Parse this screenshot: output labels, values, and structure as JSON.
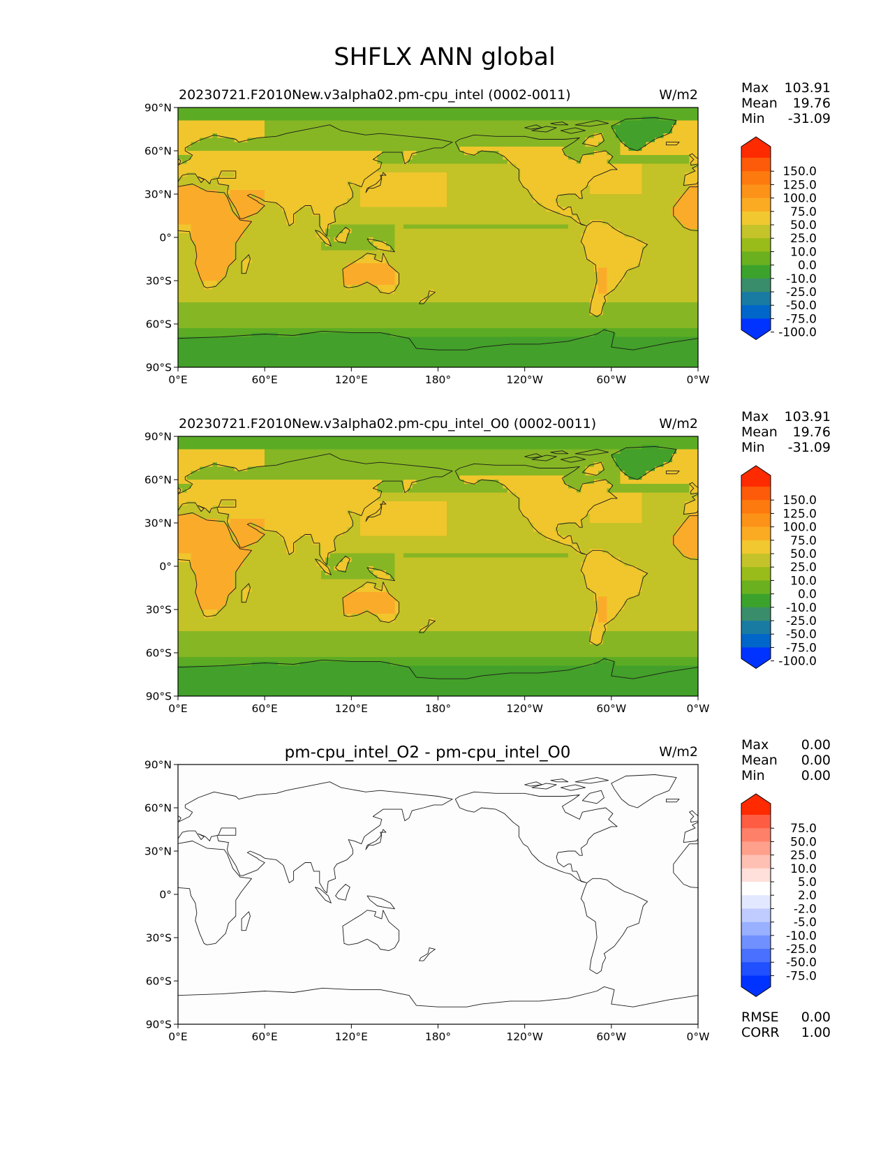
{
  "title": "SHFLX ANN global",
  "colors": {
    "ocean": "#c3c227",
    "land": "#f0c62c",
    "hot": "#fbab2a",
    "polar_ice": "#43a02a",
    "mid_green": "#86b624",
    "sea_ice": "#5bac24",
    "diff_bg": "#fdfdfd",
    "coast": "#1a1a1a",
    "contour_colors": [
      "#0033ff",
      "#0066c9",
      "#1a7ba2",
      "#3a8d6b",
      "#3ba32c",
      "#6bb11f",
      "#99bc1a",
      "#c5c32a",
      "#f2c830",
      "#fbab22",
      "#fc9217",
      "#fd7a0e",
      "#fd5b09",
      "#ff2b00"
    ],
    "diff_colors": [
      "#0033ff",
      "#2050ff",
      "#4a70ff",
      "#7090ff",
      "#98b0ff",
      "#c0ccff",
      "#e2e8ff",
      "#ffffff",
      "#ffe0da",
      "#ffc0b4",
      "#ffa08c",
      "#ff8068",
      "#ff5c44",
      "#ff2a00"
    ]
  },
  "panels": [
    {
      "id": "test",
      "title": "20230721.F2010New.v3alpha02.pm-cpu_intel (0002-0011)",
      "units": "W/m2",
      "stats": [
        [
          "Max",
          "103.91"
        ],
        [
          "Mean",
          "19.76"
        ],
        [
          "Min",
          "-31.09"
        ]
      ],
      "colorbar_labels": [
        "150.0",
        "125.0",
        "100.0",
        "75.0",
        "50.0",
        "25.0",
        "10.0",
        "0.0",
        "-10.0",
        "-25.0",
        "-50.0",
        "-75.0",
        "-100.0"
      ],
      "field": "full"
    },
    {
      "id": "ref",
      "title": "20230721.F2010New.v3alpha02.pm-cpu_intel_O0 (0002-0011)",
      "units": "W/m2",
      "stats": [
        [
          "Max",
          "103.91"
        ],
        [
          "Mean",
          "19.76"
        ],
        [
          "Min",
          "-31.09"
        ]
      ],
      "colorbar_labels": [
        "150.0",
        "125.0",
        "100.0",
        "75.0",
        "50.0",
        "25.0",
        "10.0",
        "0.0",
        "-10.0",
        "-25.0",
        "-50.0",
        "-75.0",
        "-100.0"
      ],
      "field": "full"
    },
    {
      "id": "diff",
      "title": "pm-cpu_intel_O2 - pm-cpu_intel_O0",
      "units": "W/m2",
      "stats": [
        [
          "Max",
          "0.00"
        ],
        [
          "Mean",
          "0.00"
        ],
        [
          "Min",
          "0.00"
        ]
      ],
      "colorbar_labels": [
        "75.0",
        "50.0",
        "25.0",
        "10.0",
        "5.0",
        "2.0",
        "-2.0",
        "-5.0",
        "-10.0",
        "-25.0",
        "-50.0",
        "-75.0"
      ],
      "extra_stats": [
        [
          "RMSE",
          "0.00"
        ],
        [
          "CORR",
          "1.00"
        ]
      ],
      "field": "diff"
    }
  ],
  "chart_data": {
    "type": "heatmap",
    "variable": "SHFLX",
    "season": "ANN",
    "region": "global",
    "units": "W/m2",
    "x_ticks": [
      "0°E",
      "60°E",
      "120°E",
      "180°",
      "120°W",
      "60°W",
      "0°W"
    ],
    "y_ticks": [
      "90°N",
      "60°N",
      "30°N",
      "0°",
      "30°S",
      "60°S",
      "90°S"
    ],
    "xlim": [
      0,
      360
    ],
    "ylim": [
      -90,
      90
    ],
    "contour_levels_main": [
      -100,
      -75,
      -50,
      -25,
      -10,
      0,
      10,
      25,
      50,
      75,
      100,
      125,
      150
    ],
    "contour_levels_diff": [
      -75,
      -50,
      -25,
      -10,
      -5,
      -2,
      2,
      5,
      10,
      25,
      50,
      75
    ]
  }
}
